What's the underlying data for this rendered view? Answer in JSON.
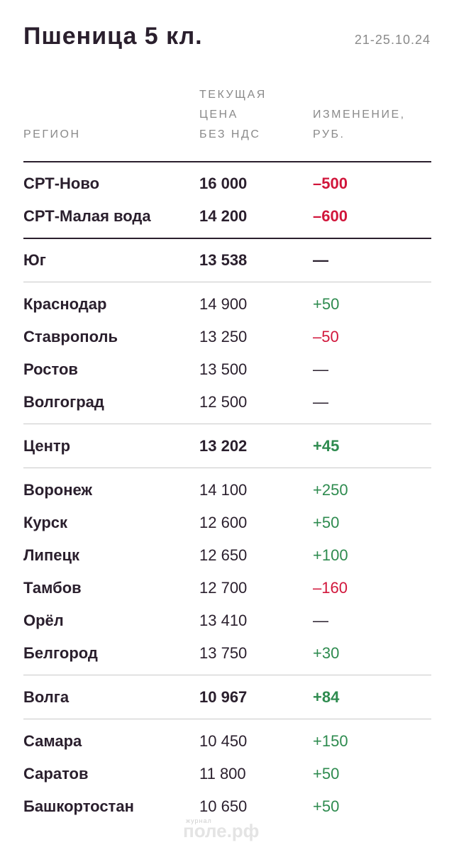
{
  "header": {
    "title": "Пшеница 5 кл.",
    "date": "21-25.10.24"
  },
  "columns": [
    {
      "lines": [
        "РЕГИОН"
      ]
    },
    {
      "lines": [
        "ТЕКУЩАЯ",
        "ЦЕНА",
        "БЕЗ НДС"
      ]
    },
    {
      "lines": [
        "ИЗМЕНЕНИЕ,",
        "РУБ."
      ]
    }
  ],
  "sections": [
    {
      "rows": [
        {
          "region": "СРТ-Ново",
          "price": "16 000",
          "change": "–500",
          "tone": "down",
          "bold": true
        },
        {
          "region": "СРТ-Малая вода",
          "price": "14 200",
          "change": "–600",
          "tone": "down",
          "bold": true
        }
      ]
    },
    {
      "rows": [
        {
          "region": "Юг",
          "price": "13 538",
          "change": "—",
          "tone": "none",
          "bold": true
        }
      ]
    },
    {
      "rows": [
        {
          "region": "Краснодар",
          "price": "14 900",
          "change": "+50",
          "tone": "up",
          "bold": false
        },
        {
          "region": "Ставрополь",
          "price": "13 250",
          "change": "–50",
          "tone": "down",
          "bold": false
        },
        {
          "region": "Ростов",
          "price": "13 500",
          "change": "—",
          "tone": "none",
          "bold": false
        },
        {
          "region": "Волгоград",
          "price": "12 500",
          "change": "—",
          "tone": "none",
          "bold": false
        }
      ]
    },
    {
      "rows": [
        {
          "region": "Центр",
          "price": "13 202",
          "change": "+45",
          "tone": "up",
          "bold": true
        }
      ]
    },
    {
      "rows": [
        {
          "region": "Воронеж",
          "price": "14 100",
          "change": "+250",
          "tone": "up",
          "bold": false
        },
        {
          "region": "Курск",
          "price": "12 600",
          "change": "+50",
          "tone": "up",
          "bold": false
        },
        {
          "region": "Липецк",
          "price": "12 650",
          "change": "+100",
          "tone": "up",
          "bold": false
        },
        {
          "region": "Тамбов",
          "price": "12 700",
          "change": "–160",
          "tone": "down",
          "bold": false
        },
        {
          "region": "Орёл",
          "price": "13 410",
          "change": "—",
          "tone": "none",
          "bold": false
        },
        {
          "region": "Белгород",
          "price": "13 750",
          "change": "+30",
          "tone": "up",
          "bold": false
        }
      ]
    },
    {
      "rows": [
        {
          "region": "Волга",
          "price": "10 967",
          "change": "+84",
          "tone": "up",
          "bold": true
        }
      ]
    },
    {
      "rows": [
        {
          "region": "Самара",
          "price": "10 450",
          "change": "+150",
          "tone": "up",
          "bold": false
        },
        {
          "region": "Саратов",
          "price": "11 800",
          "change": "+50",
          "tone": "up",
          "bold": false
        },
        {
          "region": "Башкортостан",
          "price": "10 650",
          "change": "+50",
          "tone": "up",
          "bold": false
        }
      ]
    }
  ],
  "watermark": {
    "small": "журнал",
    "big": "поле.рф"
  }
}
